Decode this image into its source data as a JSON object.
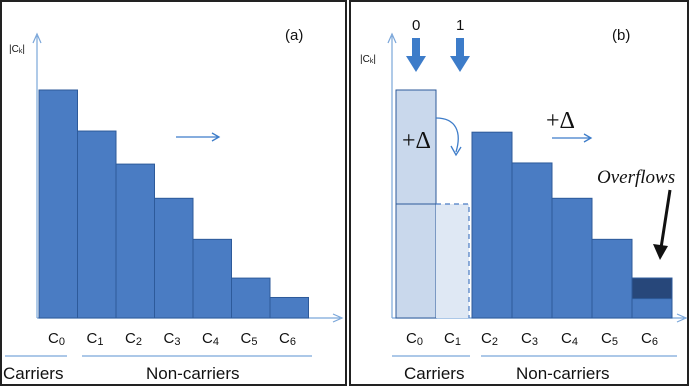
{
  "colors": {
    "bar_fill": "#4a7cc3",
    "bar_stroke": "#2d5a9a",
    "light_fill": "#c9d8ec",
    "lighter_fill": "#dfe8f4",
    "overflow_fill": "#27477a",
    "axis": "#7aa6d9",
    "arrow_blue": "#3d7cc9",
    "frame": "#222222"
  },
  "panel_a": {
    "tag": "(a)",
    "ylabel": "|C",
    "ylabel_sub": "k",
    "ylabel_end": "|",
    "bars": [
      {
        "name": "C",
        "sub": "0",
        "level": 1.0
      },
      {
        "name": "C",
        "sub": "1",
        "level": 0.82
      },
      {
        "name": "C",
        "sub": "2",
        "level": 0.675
      },
      {
        "name": "C",
        "sub": "3",
        "level": 0.525
      },
      {
        "name": "C",
        "sub": "4",
        "level": 0.345
      },
      {
        "name": "C",
        "sub": "5",
        "level": 0.175
      },
      {
        "name": "C",
        "sub": "6",
        "level": 0.09
      }
    ],
    "group_carriers": "Carriers",
    "group_noncarriers": "Non-carriers"
  },
  "panel_b": {
    "tag": "(b)",
    "ylabel": "|C",
    "ylabel_sub": "k",
    "ylabel_end": "|",
    "marker_0": "0",
    "marker_1": "1",
    "delta_left": "+Δ",
    "delta_right": "+Δ",
    "overflow_label": "Overflows",
    "carriers": [
      {
        "name": "C",
        "sub": "0"
      },
      {
        "name": "C",
        "sub": "1"
      }
    ],
    "bars": [
      {
        "name": "C",
        "sub": "2",
        "level": 0.815
      },
      {
        "name": "C",
        "sub": "3",
        "level": 0.68
      },
      {
        "name": "C",
        "sub": "4",
        "level": 0.525
      },
      {
        "name": "C",
        "sub": "5",
        "level": 0.345
      },
      {
        "name": "C",
        "sub": "6",
        "level": 0.175,
        "overflow": 0.09
      }
    ],
    "group_carriers": "Carriers",
    "group_noncarriers": "Non-carriers"
  }
}
